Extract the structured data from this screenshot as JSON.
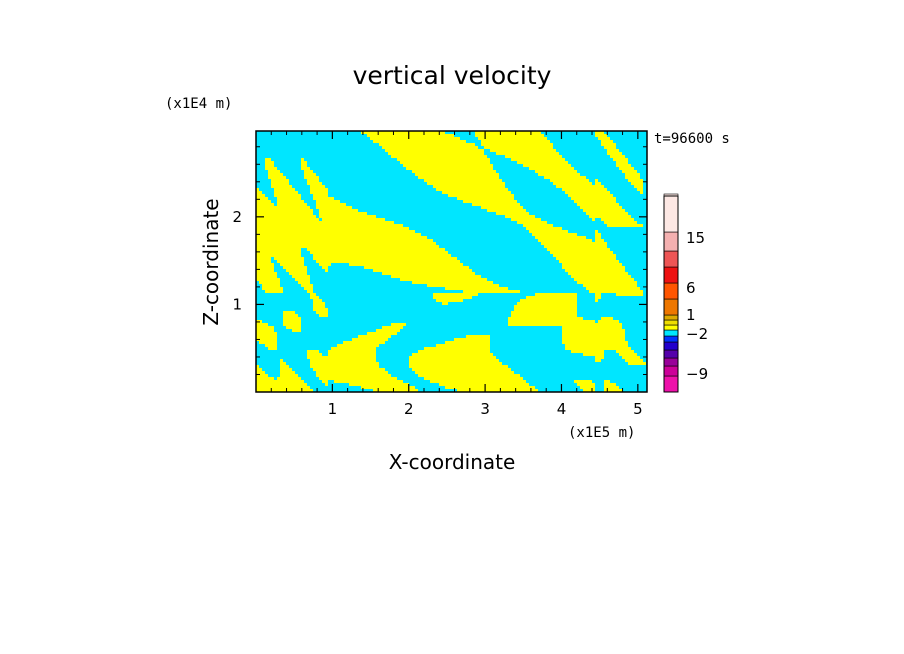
{
  "chart_data": {
    "type": "heatmap",
    "title": "vertical velocity",
    "xlabel": "X-coordinate",
    "ylabel": "Z-coordinate",
    "x_unit": "(x1E5 m)",
    "y_unit": "(x1E4 m)",
    "time_label": "t=96600 s",
    "xlim": [
      0,
      5.12
    ],
    "ylim": [
      0,
      2.98
    ],
    "x_ticks": [
      1,
      2,
      3,
      4,
      5
    ],
    "y_ticks": [
      1,
      2
    ],
    "x_tick_labels": [
      "1",
      "2",
      "3",
      "4",
      "5"
    ],
    "y_tick_labels": [
      "1",
      "2"
    ],
    "colorbar": {
      "levels": [
        {
          "color": "#ee11aa"
        },
        {
          "color": "#cc0099"
        },
        {
          "color": "#990099"
        },
        {
          "color": "#5500aa"
        },
        {
          "color": "#2200cc"
        },
        {
          "color": "#0033ff"
        },
        {
          "color": "#00e6ff"
        },
        {
          "color": "#ffff00"
        },
        {
          "color": "#eedd00"
        },
        {
          "color": "#ddaa00"
        },
        {
          "color": "#ee7700"
        },
        {
          "color": "#ff5500"
        },
        {
          "color": "#ee1111"
        },
        {
          "color": "#ee5555"
        },
        {
          "color": "#f4b0b0"
        },
        {
          "color": "#fde8e4"
        }
      ],
      "labels": [
        "15",
        "6",
        "1",
        "-2",
        "-9"
      ]
    },
    "field_colors": {
      "negative": "#00e6ff",
      "positive": "#ffff00"
    }
  }
}
